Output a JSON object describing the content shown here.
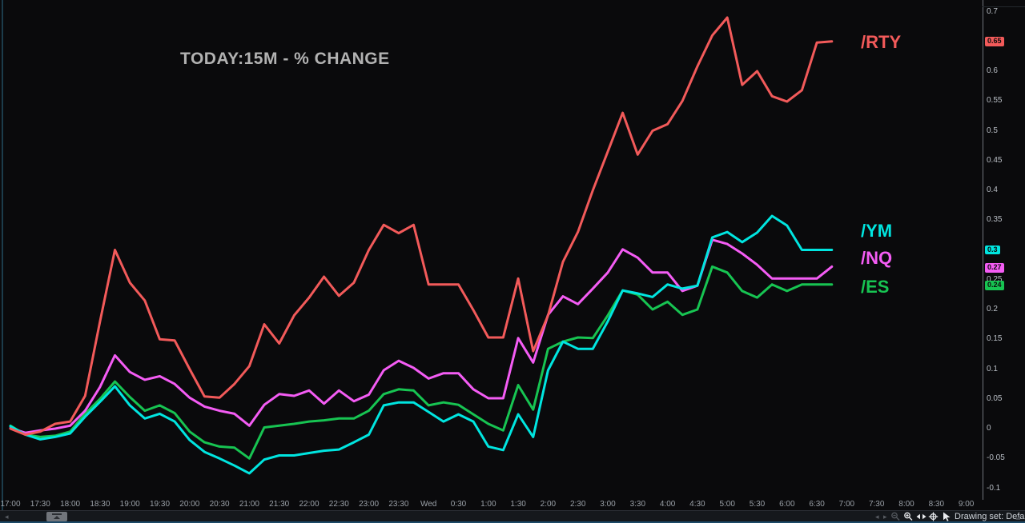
{
  "title": "TODAY:15M - % CHANGE",
  "colors": {
    "background": "#0a0a0c",
    "rty": "#f25a5a",
    "ym": "#00e5e0",
    "nq": "#f45cf4",
    "es": "#17c452",
    "axis_text": "#b9bec5",
    "badge_text": "#0c0c0c"
  },
  "series_labels": [
    {
      "symbol": "/RTY",
      "color": "#f25a5a"
    },
    {
      "symbol": "/YM",
      "color": "#00e5e0"
    },
    {
      "symbol": "/NQ",
      "color": "#f45cf4"
    },
    {
      "symbol": "/ES",
      "color": "#17c452"
    }
  ],
  "chart_data": {
    "type": "line",
    "title": "TODAY:15M - % CHANGE",
    "interval": "15m",
    "grid": false,
    "legend_position": "right-inline",
    "ylim": [
      -0.113,
      0.715
    ],
    "x": [
      "17:00",
      "17:15",
      "17:30",
      "17:45",
      "18:00",
      "18:15",
      "18:30",
      "18:45",
      "19:00",
      "19:15",
      "19:30",
      "19:45",
      "20:00",
      "20:15",
      "20:30",
      "20:45",
      "21:00",
      "21:15",
      "21:30",
      "21:45",
      "22:00",
      "22:15",
      "22:30",
      "22:45",
      "23:00",
      "23:15",
      "23:30",
      "23:45",
      "0:00",
      "0:15",
      "0:30",
      "0:45",
      "1:00",
      "1:15",
      "1:30",
      "1:45",
      "2:00",
      "2:15",
      "2:30",
      "2:45",
      "3:00",
      "3:15",
      "3:30",
      "3:45",
      "4:00",
      "4:15",
      "4:30",
      "4:45",
      "5:00",
      "5:15",
      "5:30",
      "5:45",
      "6:00",
      "6:15",
      "6:30",
      "6:45"
    ],
    "series": [
      {
        "name": "/RTY",
        "color": "#f25a5a",
        "last": 0.65,
        "values": [
          0,
          -0.01,
          -0.005,
          0.008,
          0.012,
          0.055,
          0.18,
          0.3,
          0.245,
          0.215,
          0.15,
          0.148,
          0.1,
          0.054,
          0.052,
          0.075,
          0.105,
          0.175,
          0.143,
          0.19,
          0.22,
          0.255,
          0.223,
          0.245,
          0.3,
          0.342,
          0.328,
          0.342,
          0.242,
          0.242,
          0.242,
          0.199,
          0.153,
          0.153,
          0.252,
          0.13,
          0.19,
          0.28,
          0.33,
          0.4,
          0.465,
          0.53,
          0.46,
          0.5,
          0.511,
          0.55,
          0.608,
          0.66,
          0.69,
          0.577,
          0.6,
          0.558,
          0.549,
          0.568,
          0.648,
          0.65
        ]
      },
      {
        "name": "/YM",
        "color": "#00e5e0",
        "last": 0.3,
        "values": [
          0.004,
          -0.01,
          -0.018,
          -0.014,
          -0.008,
          0.02,
          0.045,
          0.071,
          0.039,
          0.017,
          0.025,
          0.012,
          -0.019,
          -0.039,
          -0.05,
          -0.062,
          -0.075,
          -0.052,
          -0.045,
          -0.045,
          -0.041,
          -0.037,
          -0.035,
          -0.023,
          -0.01,
          0.039,
          0.044,
          0.044,
          0.028,
          0.012,
          0.024,
          0.012,
          -0.03,
          -0.036,
          0.024,
          -0.014,
          0.098,
          0.146,
          0.134,
          0.134,
          0.18,
          0.232,
          0.227,
          0.221,
          0.242,
          0.235,
          0.24,
          0.321,
          0.33,
          0.313,
          0.329,
          0.357,
          0.341,
          0.3,
          0.3,
          0.3
        ]
      },
      {
        "name": "/NQ",
        "color": "#f45cf4",
        "last": 0.27,
        "values": [
          0.001,
          -0.007,
          -0.003,
          0.0,
          0.005,
          0.03,
          0.07,
          0.123,
          0.095,
          0.082,
          0.088,
          0.075,
          0.052,
          0.037,
          0.03,
          0.025,
          0.005,
          0.04,
          0.058,
          0.055,
          0.064,
          0.042,
          0.064,
          0.046,
          0.057,
          0.098,
          0.114,
          0.102,
          0.084,
          0.093,
          0.093,
          0.066,
          0.051,
          0.051,
          0.152,
          0.111,
          0.191,
          0.222,
          0.209,
          0.235,
          0.262,
          0.301,
          0.287,
          0.262,
          0.262,
          0.231,
          0.24,
          0.317,
          0.31,
          0.294,
          0.275,
          0.252,
          0.252,
          0.252,
          0.252,
          0.272
        ]
      },
      {
        "name": "/ES",
        "color": "#17c452",
        "last": 0.24,
        "values": [
          0.005,
          -0.01,
          -0.014,
          -0.012,
          -0.005,
          0.025,
          0.05,
          0.079,
          0.053,
          0.03,
          0.039,
          0.026,
          -0.005,
          -0.023,
          -0.03,
          -0.032,
          -0.05,
          0.002,
          0.005,
          0.008,
          0.012,
          0.014,
          0.017,
          0.017,
          0.03,
          0.058,
          0.066,
          0.064,
          0.039,
          0.044,
          0.04,
          0.024,
          0.008,
          -0.003,
          0.073,
          0.032,
          0.134,
          0.146,
          0.153,
          0.152,
          0.19,
          0.232,
          0.225,
          0.2,
          0.213,
          0.191,
          0.2,
          0.272,
          0.262,
          0.231,
          0.22,
          0.242,
          0.231,
          0.242,
          0.242,
          0.242
        ]
      }
    ]
  },
  "y_axis": {
    "ticks": [
      "0.7",
      "0.65",
      "0.6",
      "0.55",
      "0.5",
      "0.45",
      "0.4",
      "0.35",
      "0.3",
      "0.25",
      "0.2",
      "0.15",
      "0.1",
      "0.05",
      "0",
      "-0.05",
      "-0.1"
    ],
    "badges": [
      {
        "label": "0.65",
        "value": 0.65,
        "color": "#f25a5a"
      },
      {
        "label": "0.3",
        "value": 0.3,
        "color": "#00e5e0"
      },
      {
        "label": "0.27",
        "value": 0.27,
        "color": "#f45cf4"
      },
      {
        "label": "0.24",
        "value": 0.24,
        "color": "#17c452"
      }
    ]
  },
  "x_axis": {
    "labels": [
      "17:00",
      "17:30",
      "18:00",
      "18:30",
      "19:00",
      "19:30",
      "20:00",
      "20:30",
      "21:00",
      "21:30",
      "22:00",
      "22:30",
      "23:00",
      "23:30",
      "Wed",
      "0:30",
      "1:00",
      "1:30",
      "2:00",
      "2:30",
      "3:00",
      "3:30",
      "4:00",
      "4:30",
      "5:00",
      "5:30",
      "6:00",
      "6:30",
      "7:00",
      "7:30",
      "8:00",
      "8:30",
      "9:00"
    ]
  },
  "bottom_bar": {
    "drawing_set_label": "Drawing set: Default",
    "icons": [
      "chevron-left-icon",
      "maximize-icon",
      "pan-left-icon",
      "pan-right-icon",
      "zoom-out-icon",
      "zoom-in-icon",
      "pan-horizontal-icon",
      "crosshair-icon",
      "cursor-icon",
      "resize-grip-icon"
    ],
    "chevron_left_glyph": "◂",
    "pan_left_glyph": "◂",
    "pan_right_glyph": "▸"
  }
}
